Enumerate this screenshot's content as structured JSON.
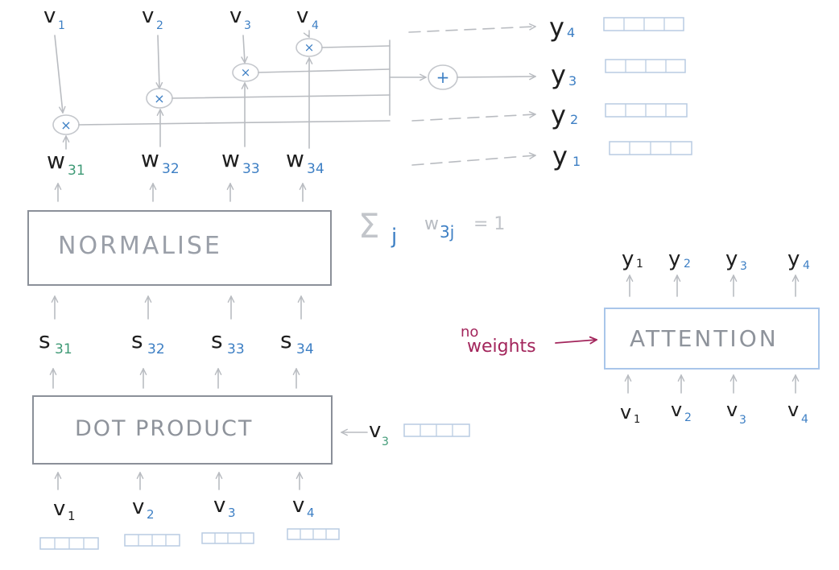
{
  "normalise_label": "NORMALISE",
  "dot_product_label": "DOT PRODUCT",
  "attention_label": "ATTENTION",
  "no_weights": {
    "line1": "no",
    "line2": "weights"
  },
  "sum_note": {
    "sigma": "Σ",
    "sub": "j",
    "w": "w",
    "w_sub": "3j",
    "equals": "= 1"
  },
  "ops": {
    "multiply": "×",
    "plus": "+"
  },
  "top_v": [
    {
      "letter": "v",
      "sub": "1"
    },
    {
      "letter": "v",
      "sub": "2"
    },
    {
      "letter": "v",
      "sub": "3"
    },
    {
      "letter": "v",
      "sub": "4"
    }
  ],
  "weights": [
    {
      "letter": "w",
      "sub": "31"
    },
    {
      "letter": "w",
      "sub": "32"
    },
    {
      "letter": "w",
      "sub": "33"
    },
    {
      "letter": "w",
      "sub": "34"
    }
  ],
  "scores": [
    {
      "letter": "s",
      "sub": "31"
    },
    {
      "letter": "s",
      "sub": "32"
    },
    {
      "letter": "s",
      "sub": "33"
    },
    {
      "letter": "s",
      "sub": "34"
    }
  ],
  "bottom_v": [
    {
      "letter": "v",
      "sub": "1"
    },
    {
      "letter": "v",
      "sub": "2"
    },
    {
      "letter": "v",
      "sub": "3"
    },
    {
      "letter": "v",
      "sub": "4"
    }
  ],
  "query_v": {
    "letter": "v",
    "sub": "3"
  },
  "outputs_right": [
    {
      "letter": "y",
      "sub": "4"
    },
    {
      "letter": "y",
      "sub": "3"
    },
    {
      "letter": "y",
      "sub": "2"
    },
    {
      "letter": "y",
      "sub": "1"
    }
  ],
  "attention_outputs": [
    {
      "letter": "y",
      "sub": "1"
    },
    {
      "letter": "y",
      "sub": "2"
    },
    {
      "letter": "y",
      "sub": "3"
    },
    {
      "letter": "y",
      "sub": "4"
    }
  ],
  "attention_inputs": [
    {
      "letter": "v",
      "sub": "1"
    },
    {
      "letter": "v",
      "sub": "2"
    },
    {
      "letter": "v",
      "sub": "3"
    },
    {
      "letter": "v",
      "sub": "4"
    }
  ],
  "colors": {
    "ink": "#1e1e1e",
    "blue": "#3d7fc4",
    "green": "#3f9a76",
    "red": "#a3265c",
    "arrow": "#b9bcc1",
    "box": "#8b9099",
    "attention_box": "#a9c6ea"
  }
}
